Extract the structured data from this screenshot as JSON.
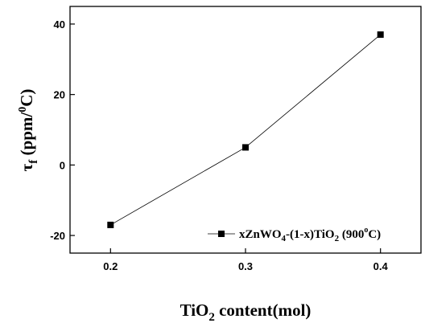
{
  "chart_data": {
    "type": "line",
    "x": [
      0.2,
      0.3,
      0.4
    ],
    "series": [
      {
        "name": "xZnWO4-(1-x)TiO2 (900°C)",
        "values": [
          -17,
          5,
          37
        ],
        "color": "#000000",
        "marker": "square"
      }
    ],
    "xlabel": "TiO2 content(mol)",
    "ylabel": "τf (ppm/0C)",
    "xlim": [
      0.17,
      0.43
    ],
    "ylim": [
      -25,
      45
    ],
    "xticks": [
      0.2,
      0.3,
      0.4
    ],
    "xtick_labels": [
      "0.2",
      "0.3",
      "0.4"
    ],
    "yticks": [
      -20,
      0,
      20,
      40
    ],
    "ytick_labels": [
      "-20",
      "0",
      "20",
      "40"
    ],
    "grid": false,
    "legend_position": "bottom-right"
  }
}
